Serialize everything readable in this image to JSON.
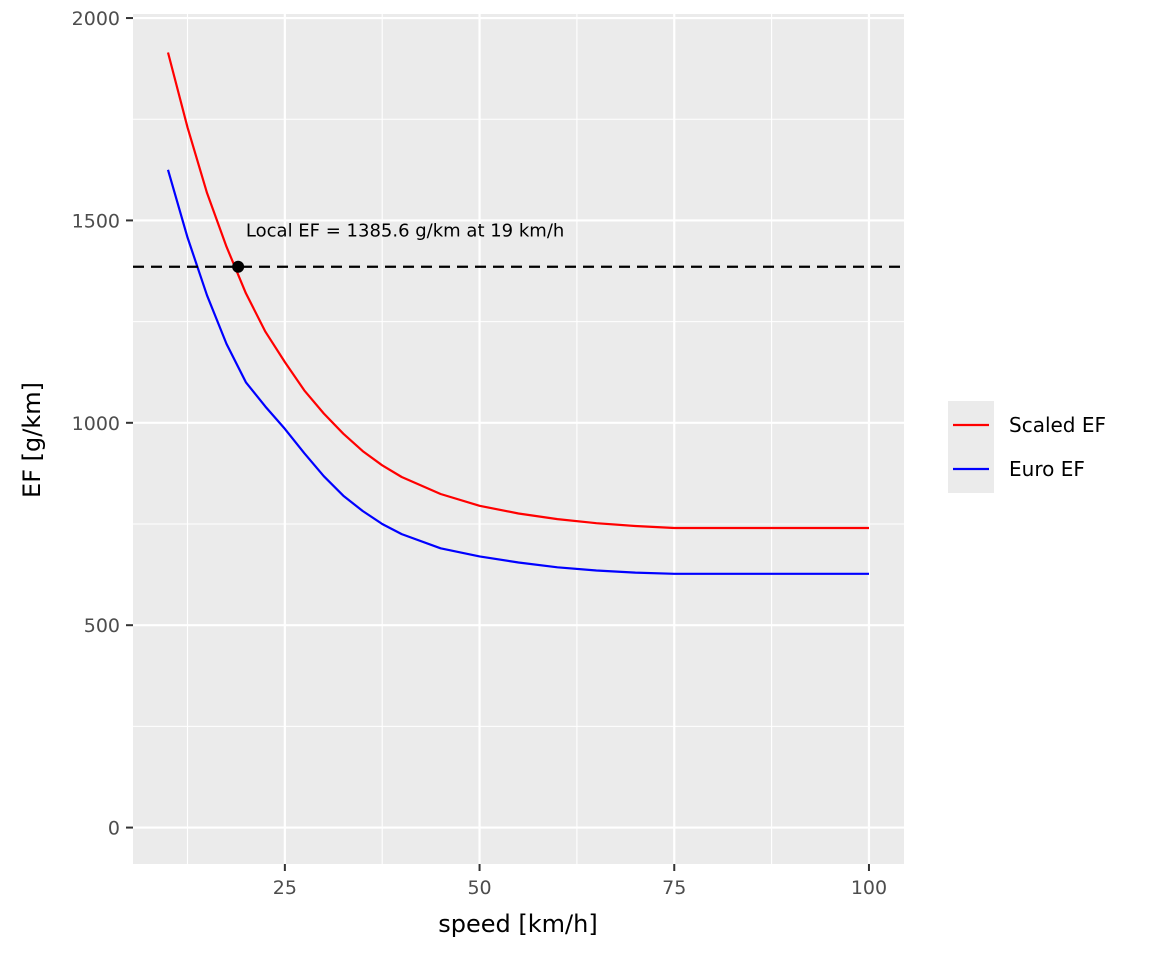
{
  "chart_data": {
    "type": "line",
    "title": "",
    "xlabel": "speed [km/h]",
    "ylabel": "EF [g/km]",
    "xlim": [
      5.5,
      104.5
    ],
    "ylim": [
      -90,
      2010
    ],
    "x_ticks": [
      25,
      50,
      75,
      100
    ],
    "x_tick_labels": [
      "25",
      "50",
      "75",
      "100"
    ],
    "x_minor_ticks": [
      12.5,
      37.5,
      62.5,
      87.5
    ],
    "y_ticks": [
      0,
      500,
      1000,
      1500,
      2000
    ],
    "y_tick_labels": [
      "0",
      "500",
      "1000",
      "1500",
      "2000"
    ],
    "y_minor_ticks": [
      250,
      750,
      1250,
      1750
    ],
    "grid": true,
    "legend_position": "right",
    "series": [
      {
        "name": "Scaled EF",
        "color": "#ff0000",
        "x": [
          10,
          12.5,
          15,
          17.5,
          20,
          22.5,
          25,
          27.5,
          30,
          32.5,
          35,
          37.5,
          40,
          45,
          50,
          55,
          60,
          65,
          70,
          75,
          100
        ],
        "y": [
          1915,
          1730,
          1568,
          1435,
          1320,
          1225,
          1150,
          1080,
          1023,
          973,
          930,
          895,
          866,
          824,
          795,
          776,
          762,
          752,
          745,
          740,
          740
        ]
      },
      {
        "name": "Euro EF",
        "color": "#0000ff",
        "x": [
          10,
          12.5,
          15,
          17.5,
          20,
          22.5,
          25,
          27.5,
          30,
          32.5,
          35,
          37.5,
          40,
          45,
          50,
          55,
          60,
          65,
          70,
          75,
          100
        ],
        "y": [
          1625,
          1458,
          1315,
          1195,
          1100,
          1040,
          985,
          925,
          868,
          820,
          782,
          750,
          725,
          690,
          670,
          655,
          643,
          635,
          630,
          627,
          627
        ]
      }
    ],
    "hline": {
      "y": 1385.6,
      "style": "dashed",
      "color": "#000000"
    },
    "point": {
      "x": 19,
      "y": 1385.6,
      "color": "#000000"
    },
    "annotation": {
      "text": "Local EF = 1385.6 g/km at 19 km/h",
      "x": 20,
      "y": 1460
    }
  }
}
